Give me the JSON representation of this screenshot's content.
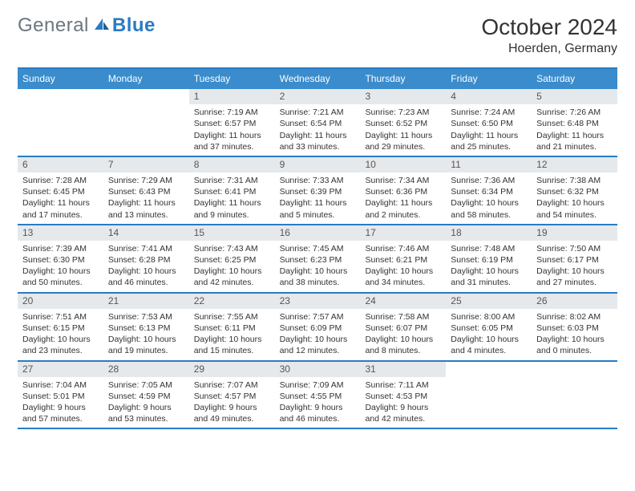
{
  "brand": {
    "first": "General",
    "second": "Blue"
  },
  "header": {
    "title": "October 2024",
    "location": "Hoerden, Germany"
  },
  "colors": {
    "accent": "#2a7bc4",
    "header_bg": "#3a8ccc",
    "strip_bg": "#e6e9ec",
    "text": "#333333",
    "muted": "#6b7680",
    "bg": "#ffffff"
  },
  "calendar": {
    "type": "table",
    "day_headers": [
      "Sunday",
      "Monday",
      "Tuesday",
      "Wednesday",
      "Thursday",
      "Friday",
      "Saturday"
    ],
    "weeks": [
      [
        null,
        null,
        {
          "n": "1",
          "sr": "Sunrise: 7:19 AM",
          "ss": "Sunset: 6:57 PM",
          "d1": "Daylight: 11 hours",
          "d2": "and 37 minutes."
        },
        {
          "n": "2",
          "sr": "Sunrise: 7:21 AM",
          "ss": "Sunset: 6:54 PM",
          "d1": "Daylight: 11 hours",
          "d2": "and 33 minutes."
        },
        {
          "n": "3",
          "sr": "Sunrise: 7:23 AM",
          "ss": "Sunset: 6:52 PM",
          "d1": "Daylight: 11 hours",
          "d2": "and 29 minutes."
        },
        {
          "n": "4",
          "sr": "Sunrise: 7:24 AM",
          "ss": "Sunset: 6:50 PM",
          "d1": "Daylight: 11 hours",
          "d2": "and 25 minutes."
        },
        {
          "n": "5",
          "sr": "Sunrise: 7:26 AM",
          "ss": "Sunset: 6:48 PM",
          "d1": "Daylight: 11 hours",
          "d2": "and 21 minutes."
        }
      ],
      [
        {
          "n": "6",
          "sr": "Sunrise: 7:28 AM",
          "ss": "Sunset: 6:45 PM",
          "d1": "Daylight: 11 hours",
          "d2": "and 17 minutes."
        },
        {
          "n": "7",
          "sr": "Sunrise: 7:29 AM",
          "ss": "Sunset: 6:43 PM",
          "d1": "Daylight: 11 hours",
          "d2": "and 13 minutes."
        },
        {
          "n": "8",
          "sr": "Sunrise: 7:31 AM",
          "ss": "Sunset: 6:41 PM",
          "d1": "Daylight: 11 hours",
          "d2": "and 9 minutes."
        },
        {
          "n": "9",
          "sr": "Sunrise: 7:33 AM",
          "ss": "Sunset: 6:39 PM",
          "d1": "Daylight: 11 hours",
          "d2": "and 5 minutes."
        },
        {
          "n": "10",
          "sr": "Sunrise: 7:34 AM",
          "ss": "Sunset: 6:36 PM",
          "d1": "Daylight: 11 hours",
          "d2": "and 2 minutes."
        },
        {
          "n": "11",
          "sr": "Sunrise: 7:36 AM",
          "ss": "Sunset: 6:34 PM",
          "d1": "Daylight: 10 hours",
          "d2": "and 58 minutes."
        },
        {
          "n": "12",
          "sr": "Sunrise: 7:38 AM",
          "ss": "Sunset: 6:32 PM",
          "d1": "Daylight: 10 hours",
          "d2": "and 54 minutes."
        }
      ],
      [
        {
          "n": "13",
          "sr": "Sunrise: 7:39 AM",
          "ss": "Sunset: 6:30 PM",
          "d1": "Daylight: 10 hours",
          "d2": "and 50 minutes."
        },
        {
          "n": "14",
          "sr": "Sunrise: 7:41 AM",
          "ss": "Sunset: 6:28 PM",
          "d1": "Daylight: 10 hours",
          "d2": "and 46 minutes."
        },
        {
          "n": "15",
          "sr": "Sunrise: 7:43 AM",
          "ss": "Sunset: 6:25 PM",
          "d1": "Daylight: 10 hours",
          "d2": "and 42 minutes."
        },
        {
          "n": "16",
          "sr": "Sunrise: 7:45 AM",
          "ss": "Sunset: 6:23 PM",
          "d1": "Daylight: 10 hours",
          "d2": "and 38 minutes."
        },
        {
          "n": "17",
          "sr": "Sunrise: 7:46 AM",
          "ss": "Sunset: 6:21 PM",
          "d1": "Daylight: 10 hours",
          "d2": "and 34 minutes."
        },
        {
          "n": "18",
          "sr": "Sunrise: 7:48 AM",
          "ss": "Sunset: 6:19 PM",
          "d1": "Daylight: 10 hours",
          "d2": "and 31 minutes."
        },
        {
          "n": "19",
          "sr": "Sunrise: 7:50 AM",
          "ss": "Sunset: 6:17 PM",
          "d1": "Daylight: 10 hours",
          "d2": "and 27 minutes."
        }
      ],
      [
        {
          "n": "20",
          "sr": "Sunrise: 7:51 AM",
          "ss": "Sunset: 6:15 PM",
          "d1": "Daylight: 10 hours",
          "d2": "and 23 minutes."
        },
        {
          "n": "21",
          "sr": "Sunrise: 7:53 AM",
          "ss": "Sunset: 6:13 PM",
          "d1": "Daylight: 10 hours",
          "d2": "and 19 minutes."
        },
        {
          "n": "22",
          "sr": "Sunrise: 7:55 AM",
          "ss": "Sunset: 6:11 PM",
          "d1": "Daylight: 10 hours",
          "d2": "and 15 minutes."
        },
        {
          "n": "23",
          "sr": "Sunrise: 7:57 AM",
          "ss": "Sunset: 6:09 PM",
          "d1": "Daylight: 10 hours",
          "d2": "and 12 minutes."
        },
        {
          "n": "24",
          "sr": "Sunrise: 7:58 AM",
          "ss": "Sunset: 6:07 PM",
          "d1": "Daylight: 10 hours",
          "d2": "and 8 minutes."
        },
        {
          "n": "25",
          "sr": "Sunrise: 8:00 AM",
          "ss": "Sunset: 6:05 PM",
          "d1": "Daylight: 10 hours",
          "d2": "and 4 minutes."
        },
        {
          "n": "26",
          "sr": "Sunrise: 8:02 AM",
          "ss": "Sunset: 6:03 PM",
          "d1": "Daylight: 10 hours",
          "d2": "and 0 minutes."
        }
      ],
      [
        {
          "n": "27",
          "sr": "Sunrise: 7:04 AM",
          "ss": "Sunset: 5:01 PM",
          "d1": "Daylight: 9 hours",
          "d2": "and 57 minutes."
        },
        {
          "n": "28",
          "sr": "Sunrise: 7:05 AM",
          "ss": "Sunset: 4:59 PM",
          "d1": "Daylight: 9 hours",
          "d2": "and 53 minutes."
        },
        {
          "n": "29",
          "sr": "Sunrise: 7:07 AM",
          "ss": "Sunset: 4:57 PM",
          "d1": "Daylight: 9 hours",
          "d2": "and 49 minutes."
        },
        {
          "n": "30",
          "sr": "Sunrise: 7:09 AM",
          "ss": "Sunset: 4:55 PM",
          "d1": "Daylight: 9 hours",
          "d2": "and 46 minutes."
        },
        {
          "n": "31",
          "sr": "Sunrise: 7:11 AM",
          "ss": "Sunset: 4:53 PM",
          "d1": "Daylight: 9 hours",
          "d2": "and 42 minutes."
        },
        null,
        null
      ]
    ]
  }
}
